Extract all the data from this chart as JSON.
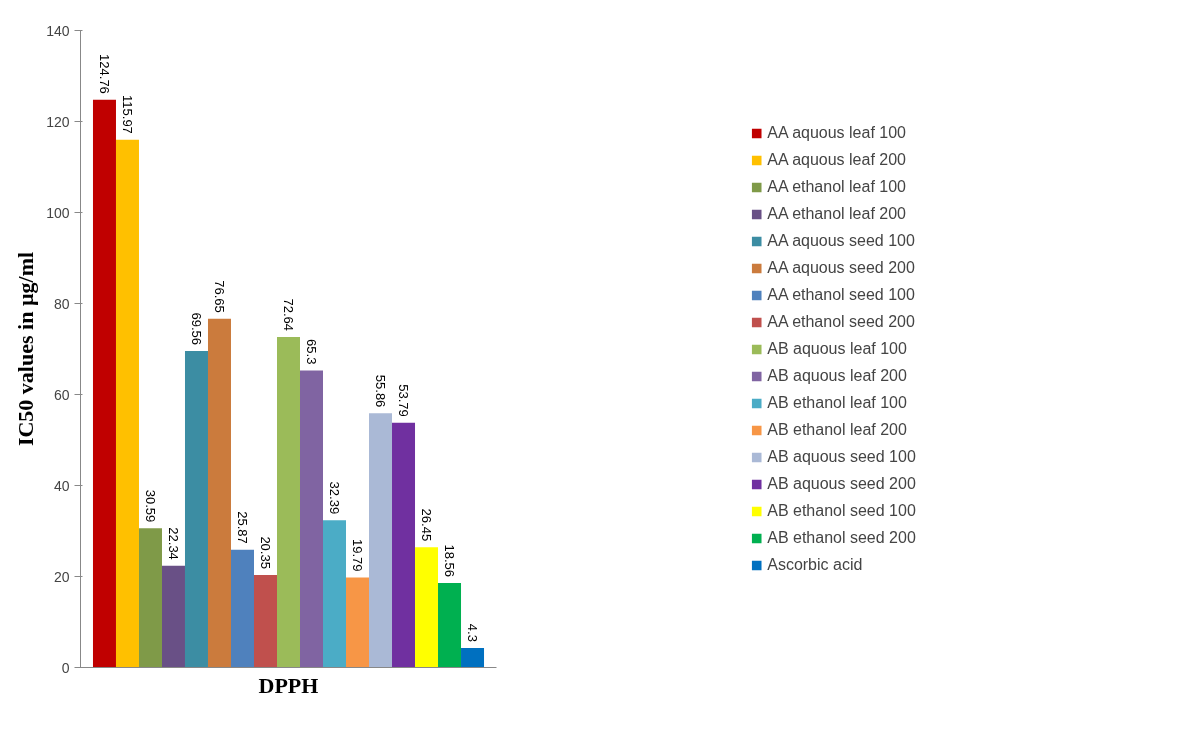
{
  "chart_data": {
    "type": "bar",
    "xlabel": "DPPH",
    "ylabel": "IC50 values in µg/ml",
    "categories": [
      null
    ],
    "ylim": [
      0,
      140
    ],
    "yticks": [
      0,
      20,
      40,
      60,
      80,
      100,
      120,
      140
    ],
    "grid": false,
    "legend": "right",
    "data_labels": true,
    "series": [
      {
        "name": "AA aquous leaf 100",
        "color": "#c00000",
        "values": [
          124.76
        ]
      },
      {
        "name": "AA aquous leaf 200",
        "color": "#ffc000",
        "values": [
          115.97
        ]
      },
      {
        "name": "AA ethanol leaf 100",
        "color": "#7f9a48",
        "values": [
          30.59
        ]
      },
      {
        "name": "AA ethanol leaf 200",
        "color": "#695086",
        "values": [
          22.34
        ]
      },
      {
        "name": "AA aquous seed 100",
        "color": "#3c8da3",
        "values": [
          69.56
        ]
      },
      {
        "name": "AA aquous seed 200",
        "color": "#cb7b3d",
        "values": [
          76.65
        ]
      },
      {
        "name": "AA ethanol seed 100",
        "color": "#4f81bd",
        "values": [
          25.87
        ]
      },
      {
        "name": "AA ethanol seed 200",
        "color": "#c0504d",
        "values": [
          20.35
        ]
      },
      {
        "name": "AB aquous leaf 100",
        "color": "#9bbb59",
        "values": [
          72.64
        ]
      },
      {
        "name": "AB aquous leaf 200",
        "color": "#8064a2",
        "values": [
          65.3
        ]
      },
      {
        "name": "AB ethanol leaf 100",
        "color": "#4bacc6",
        "values": [
          32.39
        ]
      },
      {
        "name": "AB ethanol leaf 200",
        "color": "#f79646",
        "values": [
          19.79
        ]
      },
      {
        "name": "AB aquous seed 100",
        "color": "#aab9d6",
        "values": [
          55.86
        ]
      },
      {
        "name": "AB aquous seed 200",
        "color": "#7030a0",
        "values": [
          53.79
        ]
      },
      {
        "name": "AB ethanol seed 100",
        "color": "#ffff00",
        "values": [
          26.45
        ]
      },
      {
        "name": "AB ethanol seed 200",
        "color": "#00b050",
        "values": [
          18.56
        ]
      },
      {
        "name": "Ascorbic acid",
        "color": "#0070c0",
        "values": [
          4.3
        ]
      }
    ]
  }
}
